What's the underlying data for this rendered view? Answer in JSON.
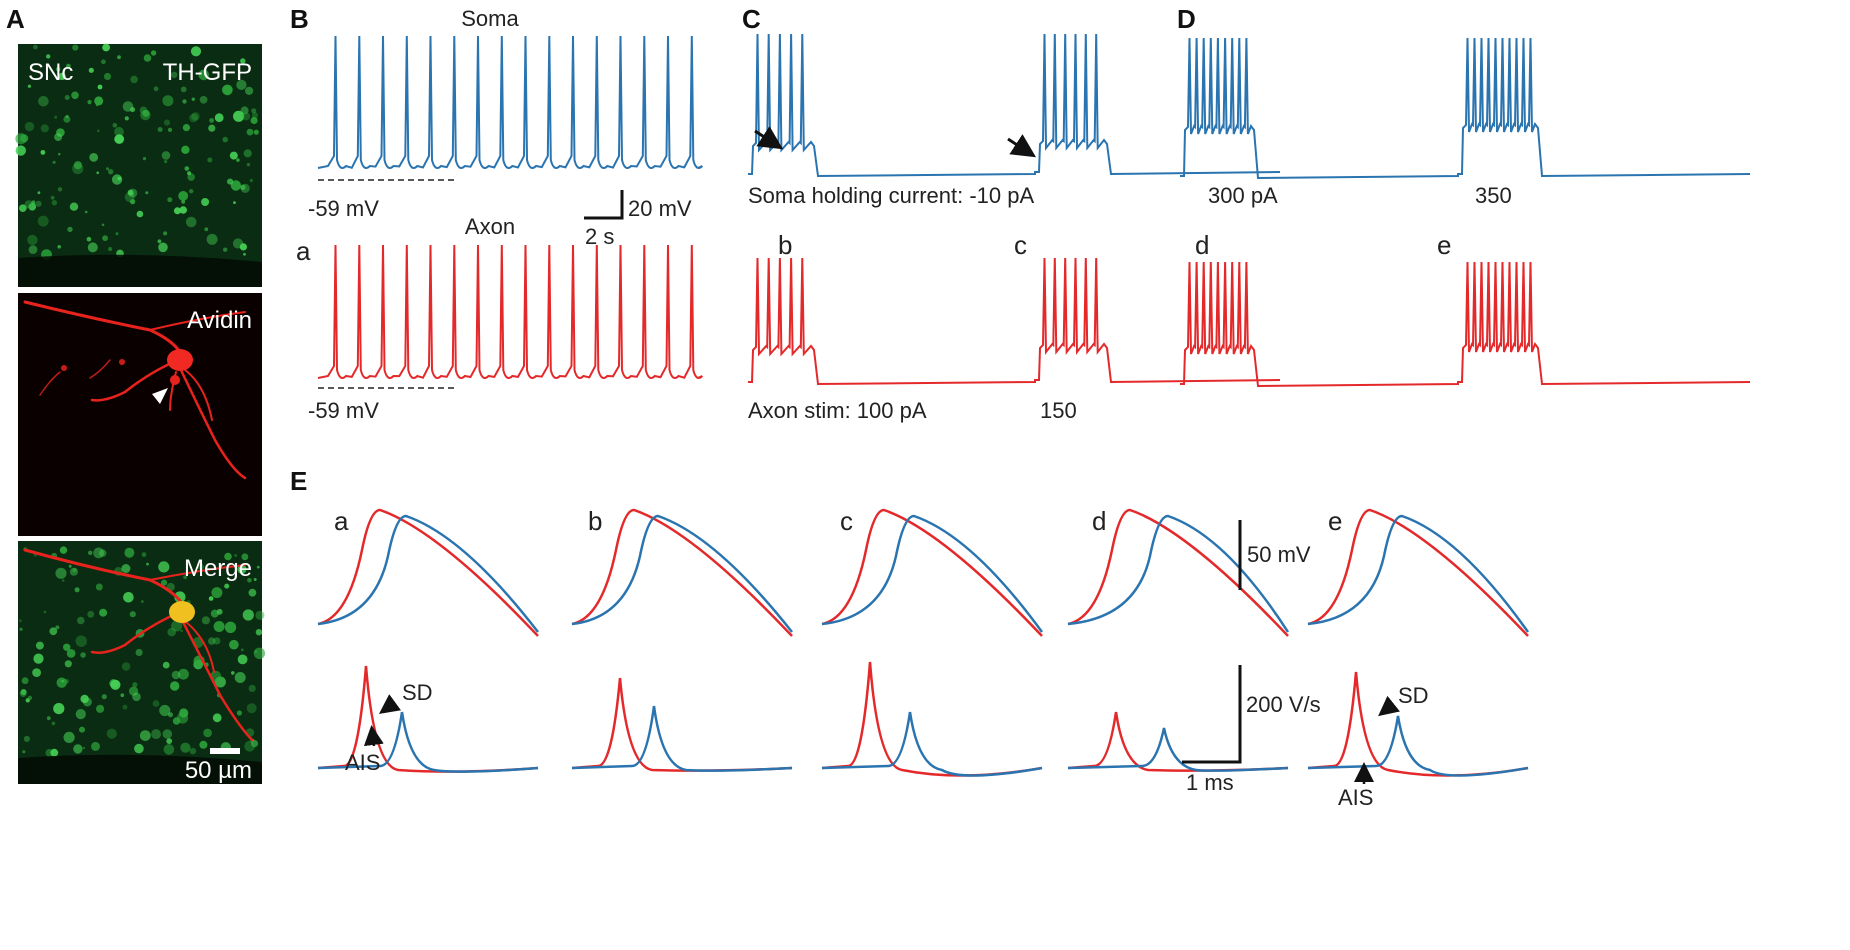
{
  "colors": {
    "soma": "#2a74b0",
    "axon": "#e4292b",
    "tissue_green": "#3bc24a",
    "avidin_red": "#e8231d"
  },
  "panels": {
    "A": {
      "letter": "A",
      "image1_left": "SNc",
      "image1_right": "TH-GFP",
      "image2": "Avidin",
      "image3": "Merge",
      "scalebar": "50 µm"
    },
    "B": {
      "letter": "B",
      "soma_title": "Soma",
      "axon_title": "Axon",
      "soma_rest": "-59 mV",
      "axon_rest": "-59 mV",
      "trace_label": "a",
      "scale_v": "20 mV",
      "scale_t": "2 s"
    },
    "C": {
      "letter": "C",
      "soma_caption": "Soma holding current: -10 pA",
      "axon_caption_left": "Axon stim: 100 pA",
      "axon_caption_right": "150",
      "label_b": "b",
      "label_c": "c"
    },
    "D": {
      "letter": "D",
      "soma_left": "300 pA",
      "soma_right": "350",
      "label_d": "d",
      "label_e": "e"
    },
    "E": {
      "letter": "E",
      "subpanels": [
        "a",
        "b",
        "c",
        "d",
        "e"
      ],
      "scale_v": "50 mV",
      "scale_dvdt": "200 V/s",
      "scale_t": "1 ms",
      "sd_label": "SD",
      "ais_label": "AIS"
    }
  }
}
